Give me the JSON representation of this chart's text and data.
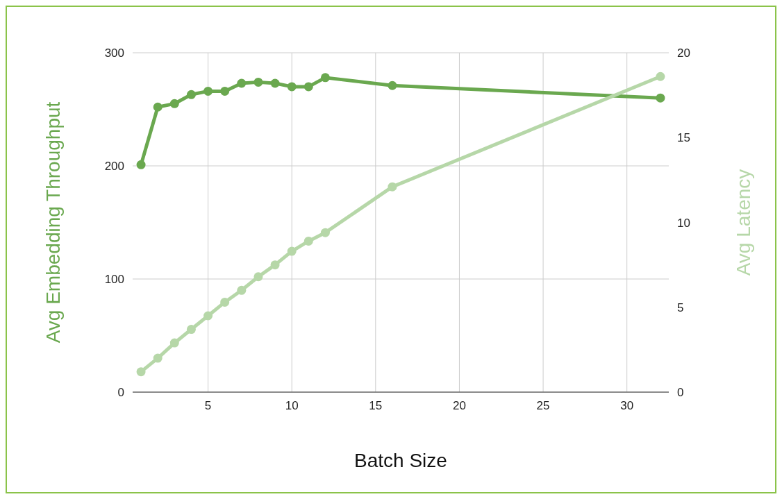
{
  "chart_data": {
    "type": "line",
    "xlabel": "Batch Size",
    "ylabel": "Avg Embedding Throughput",
    "y2label": "Avg Latency",
    "x": [
      1,
      2,
      3,
      4,
      5,
      6,
      7,
      8,
      9,
      10,
      11,
      12,
      16,
      32
    ],
    "xlim": [
      0.5,
      32.5
    ],
    "xticks": [
      5,
      10,
      15,
      20,
      25,
      30
    ],
    "ylim": [
      0,
      300
    ],
    "yticks": [
      0,
      100,
      200,
      300
    ],
    "y2lim": [
      0,
      20
    ],
    "y2ticks": [
      0,
      5,
      10,
      15,
      20
    ],
    "grid": true,
    "marker": "circle",
    "line_style": "solid",
    "series": [
      {
        "color": "#6aa84f",
        "values": [
          201,
          252,
          255,
          263,
          266,
          266,
          273,
          274,
          273,
          270,
          270,
          278,
          271,
          260
        ]
      },
      {
        "color": "#b6d7a8",
        "axis": "y2",
        "values": [
          1.2,
          2.0,
          2.9,
          3.7,
          4.5,
          5.3,
          6.0,
          6.8,
          7.5,
          8.3,
          8.9,
          9.4,
          12.1,
          18.6
        ]
      }
    ]
  }
}
